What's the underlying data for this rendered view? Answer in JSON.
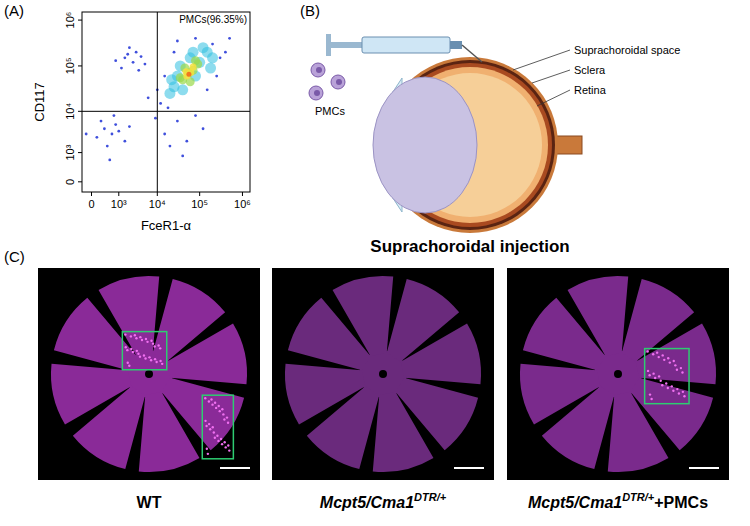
{
  "chart_data": {
    "type": "scatter",
    "x_label": "FceR1-α",
    "y_label": "CD117",
    "log": true,
    "xlim": [
      -200,
      1500000
    ],
    "ylim": [
      -200,
      1500000
    ],
    "xticks": [
      0,
      {
        "value": 1000,
        "label": "10³"
      },
      {
        "value": 10000,
        "label": "10⁴"
      },
      {
        "value": 100000,
        "label": "10⁵"
      },
      {
        "value": 1000000,
        "label": "10⁶"
      }
    ],
    "yticks": [
      0,
      {
        "value": 1000,
        "label": "10³"
      },
      {
        "value": 10000,
        "label": "10⁴"
      },
      {
        "value": 100000,
        "label": "10⁵"
      },
      {
        "value": 1000000,
        "label": "10⁶"
      }
    ],
    "gates": {
      "x": 10000,
      "y": 10000
    },
    "annotations": [
      {
        "text": "PMCs(96.35%)"
      }
    ],
    "series": [
      {
        "color": "#2a3cd8",
        "x": [
          1500,
          2500,
          3000,
          1200,
          4000,
          2000,
          5000,
          800,
          3500,
          1800,
          300,
          600,
          100,
          800,
          400,
          200,
          1000,
          700,
          1500,
          2000,
          -100,
          500,
          15000,
          30000,
          50000,
          80000,
          20000,
          120000,
          40000,
          9000,
          12000,
          200000,
          300000,
          15000,
          25000,
          150000,
          500000,
          10000,
          80000,
          250000,
          6000,
          18000,
          400000,
          30000
        ],
        "values": [
          150000,
          120000,
          200000,
          90000,
          160000,
          250000,
          110000,
          130000,
          80000,
          180000,
          4000,
          3000,
          2500,
          5000,
          1500,
          6000,
          3500,
          8000,
          2000,
          4500,
          3000,
          600,
          3000,
          6000,
          2000,
          8000,
          1500,
          4000,
          800,
          7000,
          15000,
          300000,
          150000,
          60000,
          200000,
          30000,
          400000,
          30000,
          400000,
          60000,
          20000,
          12000,
          200000,
          350000
        ]
      },
      {
        "color": "#30c0e0",
        "x": [
          20000,
          30000,
          100000,
          150000,
          25000,
          60000,
          200000,
          40000,
          80000,
          120000,
          35000,
          70000,
          180000,
          22000
        ],
        "values": [
          25000,
          60000,
          120000,
          200000,
          35000,
          150000,
          150000,
          30000,
          60000,
          250000,
          100000,
          200000,
          90000,
          50000
        ]
      },
      {
        "color": "#9ad84a",
        "x": [
          40000,
          55000,
          70000,
          45000,
          90000,
          35000,
          60000,
          80000
        ],
        "values": [
          50000,
          70000,
          80000,
          90000,
          110000,
          55000,
          45000,
          130000
        ]
      },
      {
        "color": "#f5e040",
        "x": [
          50000,
          62000,
          48000,
          70000
        ],
        "values": [
          60000,
          72000,
          75000,
          95000
        ]
      },
      {
        "color": "#f07020",
        "x": [
          56000
        ],
        "values": [
          66000
        ]
      }
    ]
  },
  "panel_labels": [
    "(A)",
    "(B)",
    "(C)"
  ],
  "diagram": {
    "title": "Suprachoroidal injection",
    "cells_label": "PMCs",
    "layers": [
      "Suprachoroidal space",
      "Sclera",
      "Retina"
    ]
  },
  "retinas": [
    {
      "label": {
        "base": "WT"
      },
      "color": "#8a2a98",
      "boxes": 2
    },
    {
      "label": {
        "base": "Mcpt5/Cma1",
        "sup": "DTR/+"
      },
      "color": "#6a2a7c",
      "boxes": 0
    },
    {
      "label": {
        "base": "Mcpt5/Cma1",
        "sup": "DTR/+",
        "suffix": "+PMCs"
      },
      "color": "#7a2a8c",
      "boxes": 1
    }
  ]
}
